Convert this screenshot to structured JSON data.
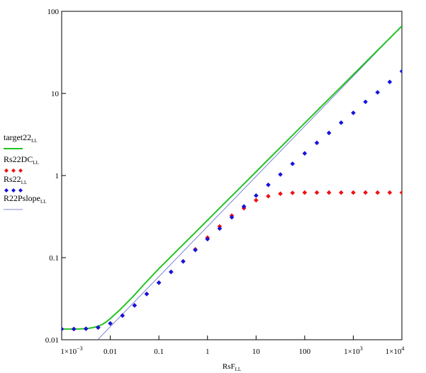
{
  "chart_data": {
    "type": "scatter",
    "x_scale": "log",
    "y_scale": "log",
    "xlim": [
      0.001,
      10000
    ],
    "ylim": [
      0.01,
      100
    ],
    "grid": false,
    "legend_position": "left",
    "xlabel": "RsF",
    "xlabel_sub": "LL",
    "x_ticks": [
      0.001,
      0.01,
      0.1,
      1,
      10,
      100,
      1000,
      10000
    ],
    "x_tick_labels": [
      {
        "base": "1×10",
        "exp": "−3"
      },
      {
        "base": "0.01",
        "exp": ""
      },
      {
        "base": "0.1",
        "exp": ""
      },
      {
        "base": "1",
        "exp": ""
      },
      {
        "base": "10",
        "exp": ""
      },
      {
        "base": "100",
        "exp": ""
      },
      {
        "base": "1×10",
        "exp": "3"
      },
      {
        "base": "1×10",
        "exp": "4"
      }
    ],
    "y_ticks": [
      0.01,
      0.1,
      1,
      10,
      100
    ],
    "y_tick_labels": [
      "0.01",
      "0.1",
      "1",
      "10",
      "100"
    ],
    "series": [
      {
        "name": "target22",
        "name_sub": "LL",
        "style": "line",
        "color": "#22c422",
        "x": [
          0.001,
          0.002,
          0.003,
          0.004,
          0.005,
          0.006,
          0.007,
          0.008,
          0.01,
          0.015,
          0.02,
          0.03,
          0.05,
          0.1,
          0.2,
          0.5,
          1,
          2,
          5,
          10,
          20,
          50,
          100,
          200,
          500,
          1000,
          2000,
          5000,
          10000
        ],
        "y": [
          0.0135,
          0.0135,
          0.0136,
          0.0139,
          0.0143,
          0.0148,
          0.0155,
          0.0163,
          0.0181,
          0.0225,
          0.0266,
          0.034,
          0.0475,
          0.0735,
          0.1106,
          0.1895,
          0.2855,
          0.4305,
          0.7375,
          1.113,
          1.679,
          2.88,
          4.346,
          6.56,
          11.24,
          16.96,
          25.59,
          43.9,
          66.25
        ]
      },
      {
        "name": "Rs22DC",
        "name_sub": "LL",
        "style": "markers",
        "color": "#ee1111",
        "x": [
          0.001,
          0.00178,
          0.00316,
          0.00562,
          0.01,
          0.0178,
          0.0316,
          0.0562,
          0.1,
          0.178,
          0.316,
          0.562,
          1,
          1.78,
          3.16,
          5.62,
          10,
          17.8,
          31.6,
          56.2,
          100,
          178,
          316,
          562,
          1000,
          1780,
          3160,
          5620,
          10000
        ],
        "y": [
          0.0135,
          0.0135,
          0.0136,
          0.0141,
          0.0158,
          0.0197,
          0.0262,
          0.0361,
          0.0495,
          0.067,
          0.09,
          0.126,
          0.175,
          0.24,
          0.325,
          0.4,
          0.5,
          0.56,
          0.6,
          0.615,
          0.62,
          0.62,
          0.62,
          0.62,
          0.62,
          0.62,
          0.62,
          0.62,
          0.62
        ]
      },
      {
        "name": "Rs22",
        "name_sub": "LL",
        "style": "markers",
        "color": "#1414dd",
        "x": [
          0.001,
          0.00178,
          0.00316,
          0.00562,
          0.01,
          0.0178,
          0.0316,
          0.0562,
          0.1,
          0.178,
          0.316,
          0.562,
          1,
          1.78,
          3.16,
          5.62,
          10,
          17.8,
          31.6,
          56.2,
          100,
          178,
          316,
          562,
          1000,
          1780,
          3160,
          5620,
          10000
        ],
        "y": [
          0.0135,
          0.0135,
          0.0136,
          0.0141,
          0.0158,
          0.0197,
          0.0262,
          0.0361,
          0.0495,
          0.067,
          0.09,
          0.124,
          0.168,
          0.226,
          0.31,
          0.42,
          0.57,
          0.77,
          1.03,
          1.39,
          1.86,
          2.5,
          3.3,
          4.4,
          5.8,
          7.9,
          10.3,
          13.8,
          18.6
        ]
      },
      {
        "name": "R22Pslope",
        "name_sub": "LL",
        "style": "thin-line",
        "color": "#5a64c8",
        "x": [
          0.0055,
          10000
        ],
        "y": [
          0.01,
          66.25
        ]
      }
    ]
  }
}
